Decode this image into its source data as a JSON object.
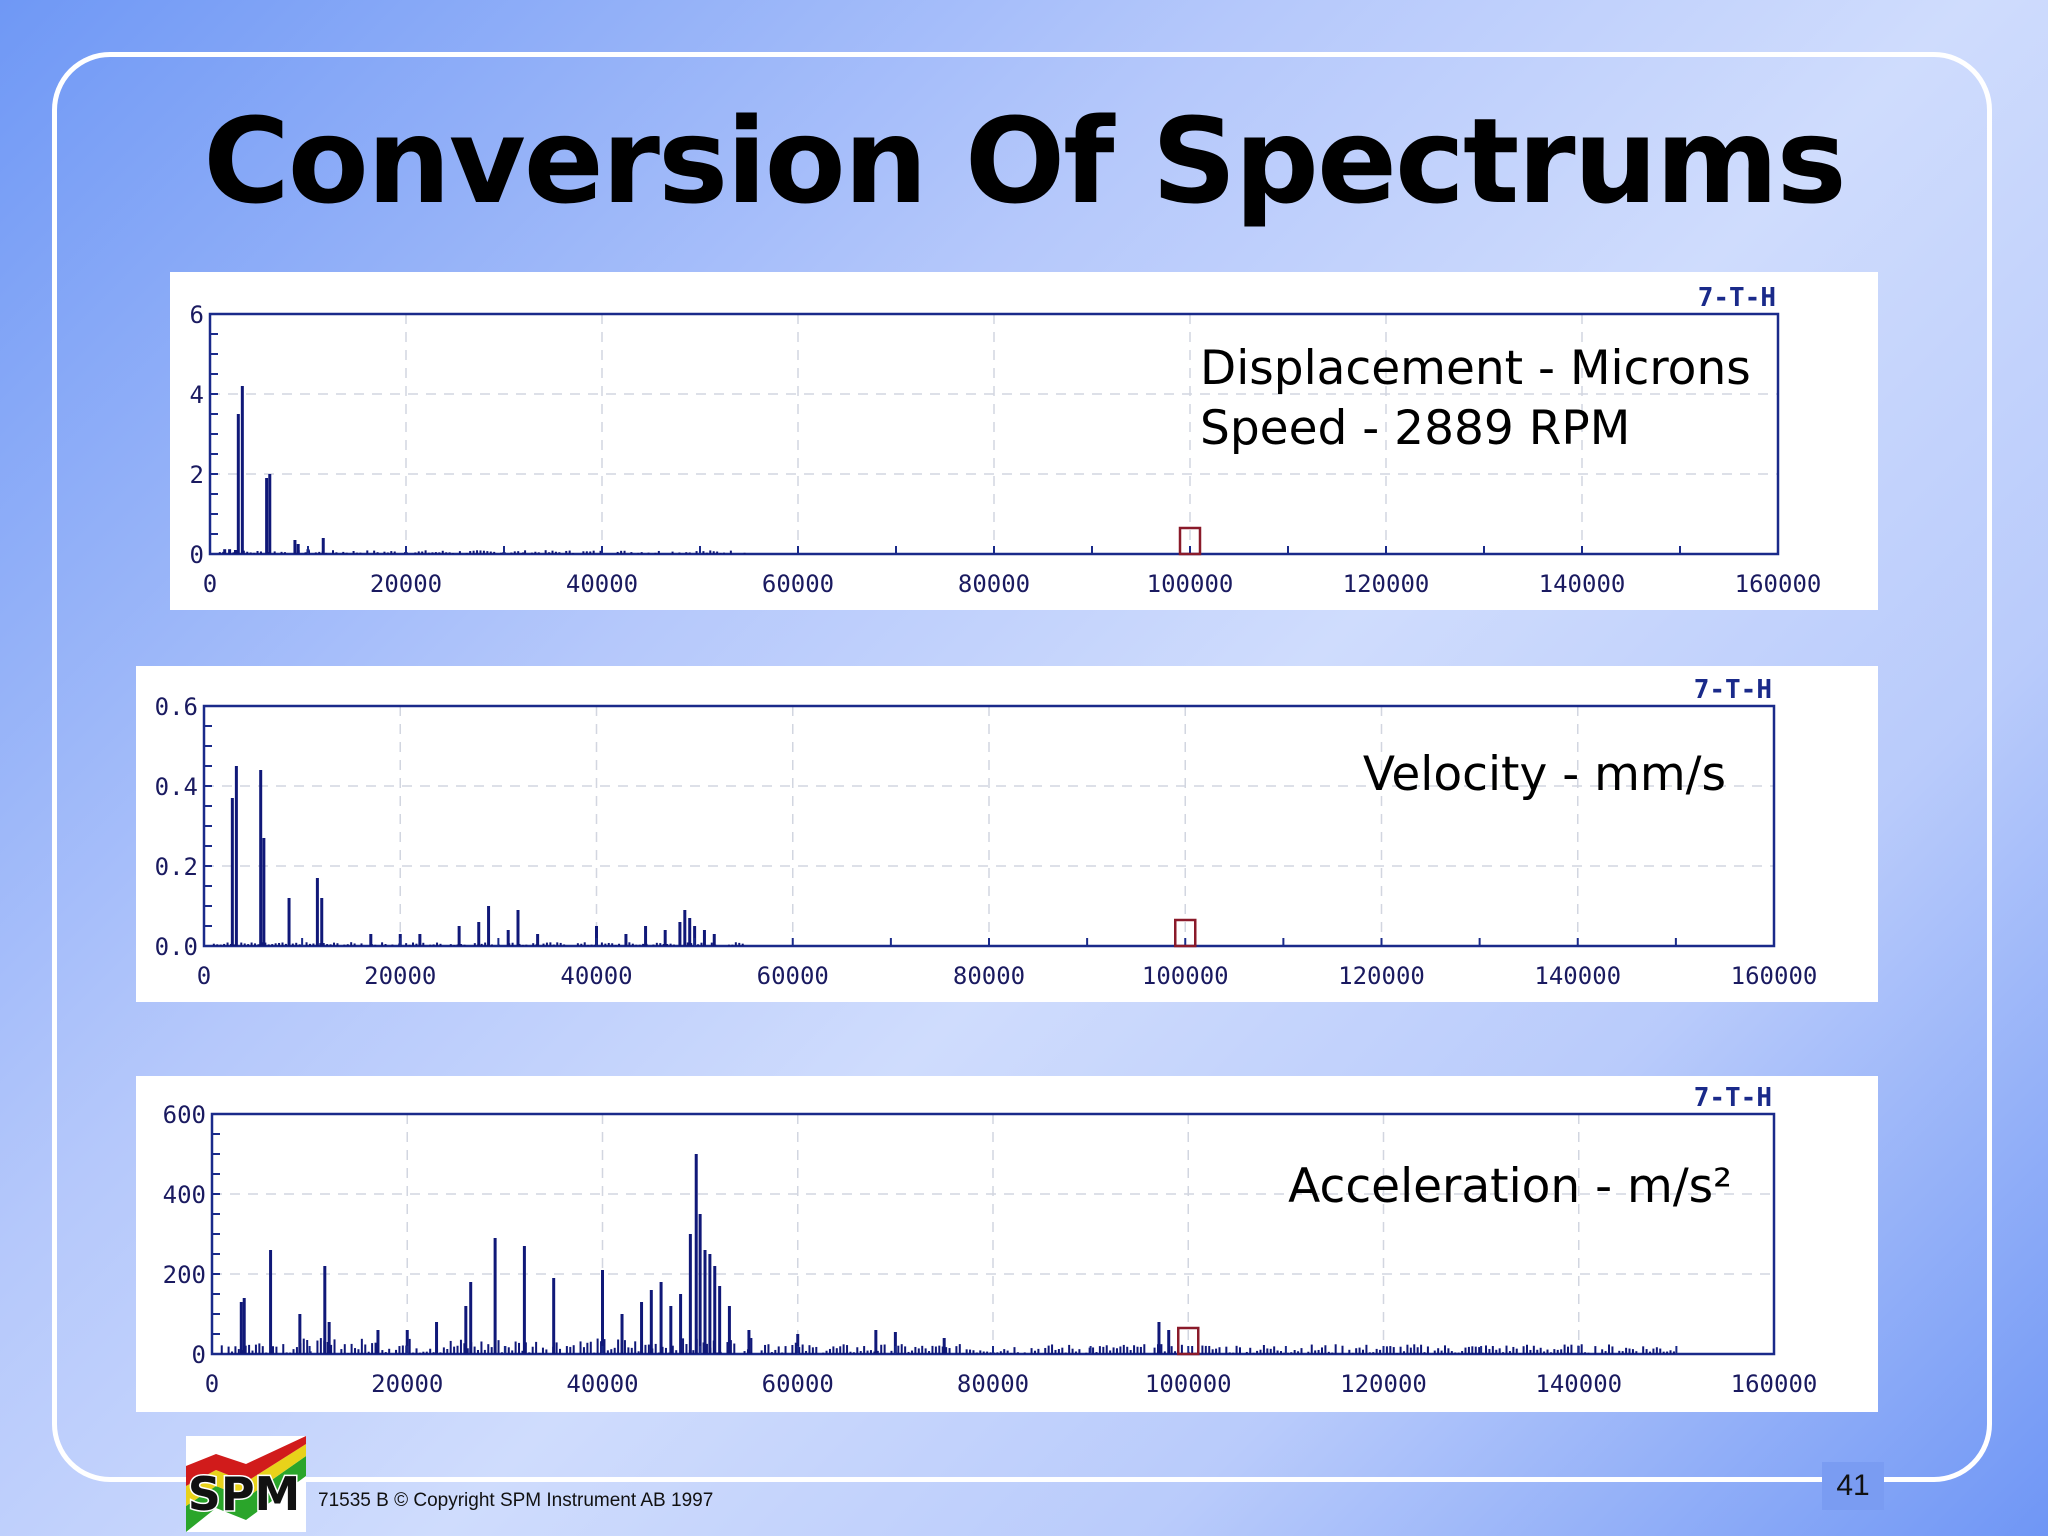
{
  "slide": {
    "title": "Conversion Of Spectrums",
    "footer": "71535 B  © Copyright SPM Instrument AB 1997",
    "page_number": "41",
    "logo_text": "SPM"
  },
  "colors": {
    "trace": "#101878",
    "axis": "#1a2a8a",
    "grid": "#d2d6e0",
    "marker": "#8a1a2a"
  },
  "chart_data": [
    {
      "type": "bar",
      "tag": "7-T-H",
      "annotation_lines": [
        "Displacement - Microns",
        "Speed - 2889 RPM"
      ],
      "xlim": [
        0,
        160000
      ],
      "ylim": [
        0,
        6
      ],
      "x_ticks": [
        "0",
        "20000",
        "40000",
        "60000",
        "80000",
        "100000",
        "120000",
        "140000",
        "160000"
      ],
      "y_ticks": [
        "0",
        "2",
        "4",
        "6"
      ],
      "marker_x": 100000,
      "peaks": [
        [
          1500,
          0.12
        ],
        [
          2000,
          0.12
        ],
        [
          2600,
          0.1
        ],
        [
          2889,
          3.5
        ],
        [
          3300,
          4.2
        ],
        [
          5778,
          1.9
        ],
        [
          6100,
          2.0
        ],
        [
          8667,
          0.35
        ],
        [
          9000,
          0.25
        ],
        [
          10000,
          0.12
        ],
        [
          11556,
          0.4
        ],
        [
          20000,
          0.05
        ],
        [
          30000,
          0.05
        ],
        [
          32000,
          0.04
        ]
      ]
    },
    {
      "type": "bar",
      "tag": "7-T-H",
      "annotation_lines": [
        "Velocity - mm/s"
      ],
      "xlim": [
        0,
        160000
      ],
      "ylim": [
        0,
        0.6
      ],
      "x_ticks": [
        "0",
        "20000",
        "40000",
        "60000",
        "80000",
        "100000",
        "120000",
        "140000",
        "160000"
      ],
      "y_ticks": [
        "0.0",
        "0.2",
        "0.4",
        "0.6"
      ],
      "marker_x": 100000,
      "peaks": [
        [
          2889,
          0.37
        ],
        [
          3300,
          0.45
        ],
        [
          5778,
          0.44
        ],
        [
          6100,
          0.27
        ],
        [
          8667,
          0.12
        ],
        [
          11556,
          0.17
        ],
        [
          12000,
          0.12
        ],
        [
          17000,
          0.03
        ],
        [
          20000,
          0.03
        ],
        [
          22000,
          0.03
        ],
        [
          26000,
          0.05
        ],
        [
          28000,
          0.06
        ],
        [
          29000,
          0.1
        ],
        [
          31000,
          0.04
        ],
        [
          32000,
          0.09
        ],
        [
          34000,
          0.03
        ],
        [
          40000,
          0.05
        ],
        [
          43000,
          0.03
        ],
        [
          45000,
          0.05
        ],
        [
          47000,
          0.04
        ],
        [
          48500,
          0.06
        ],
        [
          49000,
          0.09
        ],
        [
          49500,
          0.07
        ],
        [
          50000,
          0.05
        ],
        [
          51000,
          0.04
        ],
        [
          52000,
          0.03
        ]
      ]
    },
    {
      "type": "bar",
      "tag": "7-T-H",
      "annotation_lines": [
        "Acceleration - m/s²"
      ],
      "xlim": [
        0,
        160000
      ],
      "ylim": [
        0,
        600
      ],
      "x_ticks": [
        "0",
        "20000",
        "40000",
        "60000",
        "80000",
        "100000",
        "120000",
        "140000",
        "160000"
      ],
      "y_ticks": [
        "0",
        "200",
        "400",
        "600"
      ],
      "marker_x": 100000,
      "peaks": [
        [
          3000,
          130
        ],
        [
          3300,
          140
        ],
        [
          6000,
          260
        ],
        [
          9000,
          100
        ],
        [
          11556,
          220
        ],
        [
          12000,
          80
        ],
        [
          17000,
          60
        ],
        [
          20000,
          60
        ],
        [
          23000,
          80
        ],
        [
          26000,
          120
        ],
        [
          26500,
          180
        ],
        [
          29000,
          290
        ],
        [
          32000,
          270
        ],
        [
          35000,
          190
        ],
        [
          40000,
          210
        ],
        [
          42000,
          100
        ],
        [
          44000,
          130
        ],
        [
          45000,
          160
        ],
        [
          46000,
          180
        ],
        [
          47000,
          120
        ],
        [
          48000,
          150
        ],
        [
          49000,
          300
        ],
        [
          49600,
          500
        ],
        [
          50000,
          350
        ],
        [
          50500,
          260
        ],
        [
          51000,
          250
        ],
        [
          51500,
          220
        ],
        [
          52000,
          170
        ],
        [
          53000,
          120
        ],
        [
          55000,
          60
        ],
        [
          60000,
          50
        ],
        [
          68000,
          60
        ],
        [
          70000,
          55
        ],
        [
          75000,
          40
        ],
        [
          97000,
          80
        ],
        [
          98000,
          60
        ]
      ],
      "noise_until": 150000,
      "noise_level": 25
    }
  ]
}
